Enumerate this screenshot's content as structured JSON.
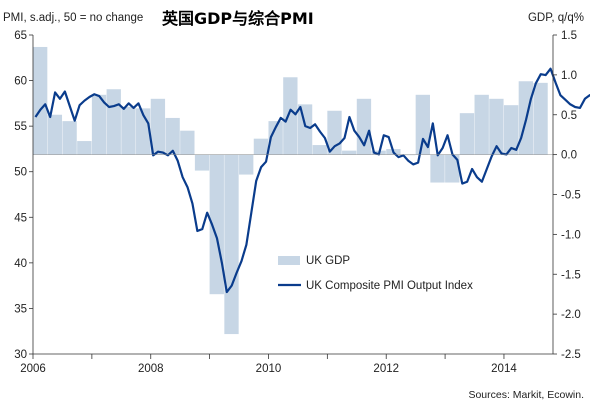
{
  "chart_data": {
    "type": "bar",
    "title": "英国GDP与综合PMI",
    "ylabel": "PMI, s.adj., 50 = no change",
    "y2label": "GDP, q/q%",
    "source": "Sources: Markit, Ecowin.",
    "ylim": [
      30,
      65
    ],
    "yticks": [
      30,
      35,
      40,
      45,
      50,
      55,
      60,
      65
    ],
    "y2lim": [
      -2.5,
      1.5
    ],
    "y2ticks": [
      "1.5",
      "1.0",
      "0.5",
      "0.0",
      "-0.5",
      "-1.0",
      "-1.5",
      "-2.0",
      "-2.5"
    ],
    "xlim": [
      2006,
      2014.833
    ],
    "xticks": [
      "2006",
      "2008",
      "2010",
      "2012",
      "2014"
    ],
    "legend_position": "bottom-center",
    "colors": {
      "gdp": "#c7d6e5",
      "pmi": "#0a3c8c",
      "axis": "#333333"
    },
    "series": [
      {
        "name": "UK GDP",
        "kind": "bar",
        "axis": "right",
        "x": [
          "2006Q1",
          "2006Q2",
          "2006Q3",
          "2006Q4",
          "2007Q1",
          "2007Q2",
          "2007Q3",
          "2007Q4",
          "2008Q1",
          "2008Q2",
          "2008Q3",
          "2008Q4",
          "2009Q1",
          "2009Q2",
          "2009Q3",
          "2009Q4",
          "2010Q1",
          "2010Q2",
          "2010Q3",
          "2010Q4",
          "2011Q1",
          "2011Q2",
          "2011Q3",
          "2011Q4",
          "2012Q1",
          "2012Q2",
          "2012Q3",
          "2012Q4",
          "2013Q1",
          "2013Q2",
          "2013Q3",
          "2013Q4",
          "2014Q1",
          "2014Q2",
          "2014Q3"
        ],
        "values": [
          1.35,
          0.5,
          0.42,
          0.17,
          0.75,
          0.82,
          0.6,
          0.58,
          0.7,
          0.46,
          0.3,
          -0.2,
          -1.75,
          -2.25,
          -0.25,
          0.2,
          0.42,
          0.97,
          0.63,
          0.12,
          0.55,
          0.05,
          0.7,
          0.05,
          0.07,
          0.0,
          0.75,
          -0.35,
          -0.35,
          0.52,
          0.75,
          0.7,
          0.62,
          0.92,
          0.9
        ]
      },
      {
        "name": "UK Composite PMI Output Index",
        "kind": "line",
        "axis": "left",
        "x_start": "2006-01",
        "values": [
          56.0,
          56.8,
          57.4,
          56.0,
          58.7,
          58.0,
          58.8,
          57.2,
          55.6,
          57.3,
          57.8,
          58.2,
          58.5,
          58.3,
          57.6,
          57.1,
          57.2,
          57.4,
          56.9,
          57.5,
          57.0,
          57.5,
          56.2,
          55.3,
          51.8,
          52.2,
          52.1,
          51.8,
          52.3,
          51.2,
          49.4,
          48.3,
          46.5,
          43.5,
          43.7,
          45.5,
          44.2,
          42.7,
          40.0,
          36.8,
          37.5,
          38.9,
          40.2,
          42.0,
          45.5,
          49.0,
          50.5,
          51.1,
          53.8,
          54.9,
          55.9,
          55.5,
          56.8,
          56.3,
          57.1,
          55.0,
          54.8,
          55.2,
          54.4,
          53.7,
          52.2,
          52.8,
          53.1,
          53.7,
          56.0,
          54.5,
          53.8,
          52.9,
          54.5,
          52.1,
          51.9,
          54.0,
          53.8,
          52.1,
          51.6,
          51.8,
          51.2,
          50.8,
          51.0,
          53.6,
          52.7,
          55.3,
          51.8,
          52.6,
          54.0,
          51.9,
          51.3,
          48.7,
          48.9,
          50.3,
          49.4,
          48.9,
          50.3,
          51.7,
          52.8,
          52.0,
          51.9,
          52.6,
          52.4,
          53.7,
          55.7,
          58.0,
          59.7,
          60.7,
          60.6,
          61.3,
          59.8,
          58.4,
          57.9,
          57.4,
          57.1,
          57.0,
          58.0,
          58.4,
          58.0,
          57.5,
          58.6,
          57.6
        ]
      }
    ]
  }
}
